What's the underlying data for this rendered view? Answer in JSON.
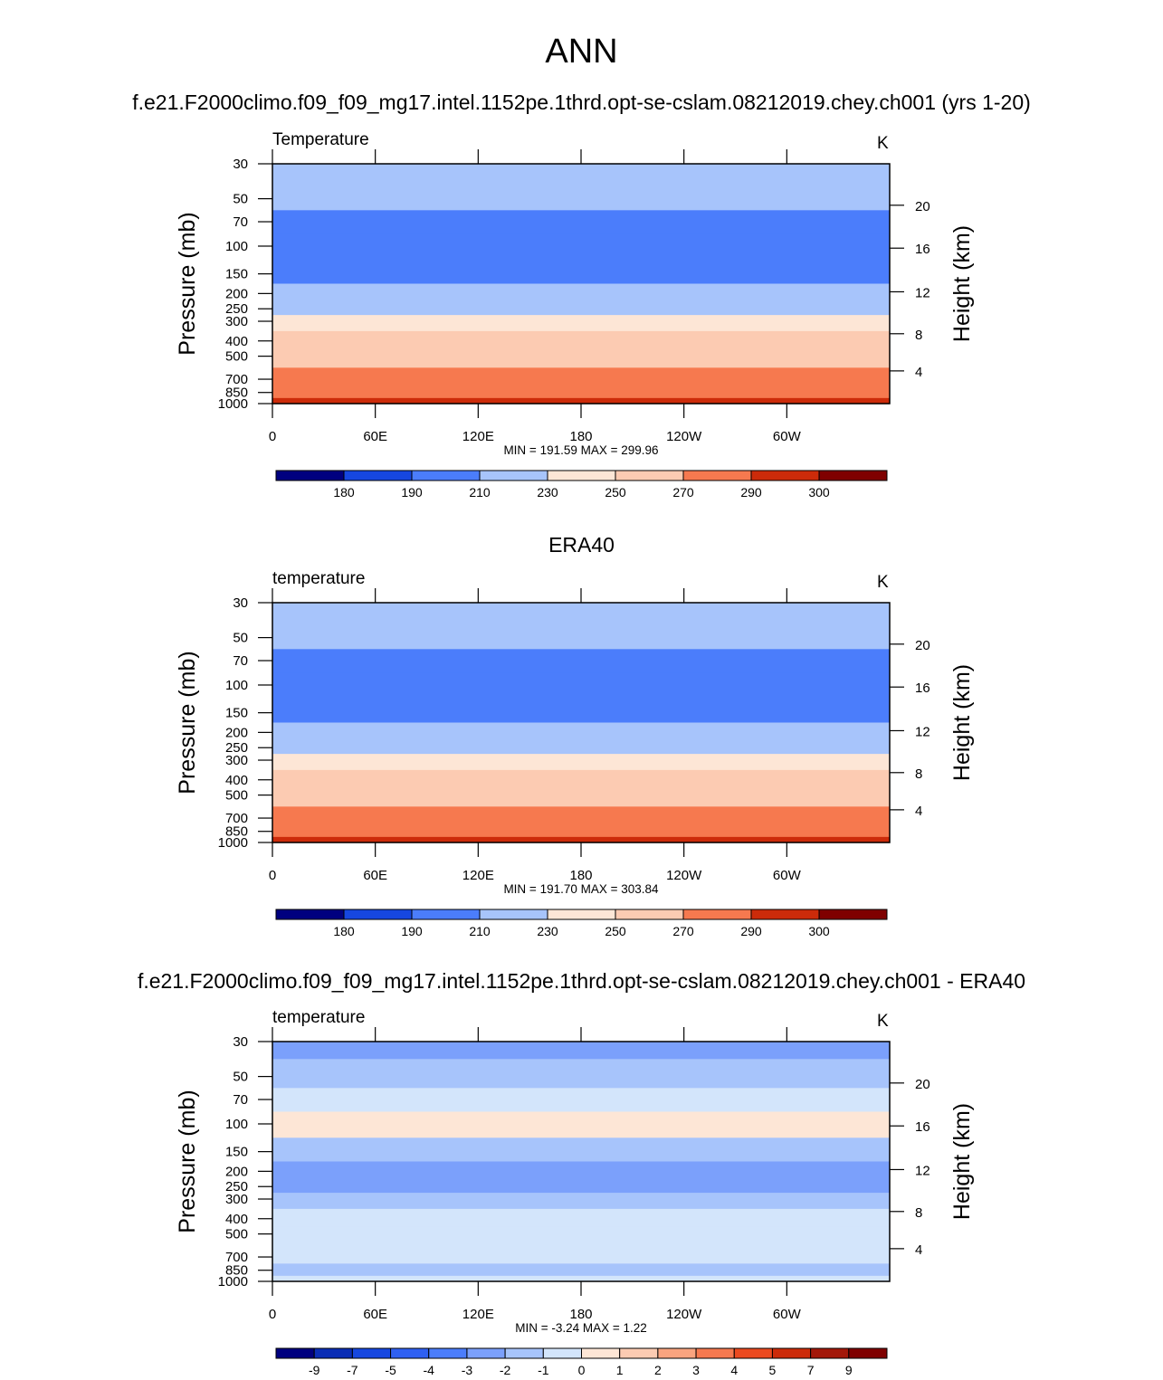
{
  "main_title": "ANN",
  "panels": [
    {
      "title": "f.e21.F2000climo.f09_f09_mg17.intel.1152pe.1thrd.opt-se-cslam.08212019.chey.ch001 (yrs 1-20)",
      "left_label": "Temperature",
      "units": "K",
      "stats": "MIN = 191.59  MAX = 299.96"
    },
    {
      "title": "ERA40",
      "left_label": "temperature",
      "units": "K",
      "stats": "MIN = 191.70  MAX = 303.84"
    },
    {
      "title": "f.e21.F2000climo.f09_f09_mg17.intel.1152pe.1thrd.opt-se-cslam.08212019.chey.ch001 - ERA40",
      "left_label": "temperature",
      "units": "K",
      "stats": "MIN =  -3.24  MAX =   1.22"
    }
  ],
  "chart_data": [
    {
      "type": "heatmap",
      "xlabel": "",
      "ylabel": "Pressure (mb)",
      "ylabel_right": "Height (km)",
      "x_ticks": [
        "0",
        "60E",
        "120E",
        "180",
        "120W",
        "60W"
      ],
      "y_ticks": [
        30,
        50,
        70,
        100,
        150,
        200,
        250,
        300,
        400,
        500,
        700,
        850,
        1000
      ],
      "y_right_ticks": [
        20,
        16,
        12,
        8,
        4
      ],
      "y_scale": "log",
      "levels": [
        {
          "p": 30,
          "value": 218
        },
        {
          "p": 50,
          "value": 212
        },
        {
          "p": 70,
          "value": 205
        },
        {
          "p": 100,
          "value": 202
        },
        {
          "p": 150,
          "value": 208
        },
        {
          "p": 200,
          "value": 216
        },
        {
          "p": 250,
          "value": 226
        },
        {
          "p": 300,
          "value": 238
        },
        {
          "p": 400,
          "value": 252
        },
        {
          "p": 500,
          "value": 262
        },
        {
          "p": 700,
          "value": 276
        },
        {
          "p": 850,
          "value": 285
        },
        {
          "p": 1000,
          "value": 290
        }
      ],
      "colorbar_labels": [
        "180",
        "190",
        "210",
        "230",
        "250",
        "270",
        "290",
        "300"
      ]
    },
    {
      "type": "heatmap",
      "xlabel": "",
      "ylabel": "Pressure (mb)",
      "ylabel_right": "Height (km)",
      "x_ticks": [
        "0",
        "60E",
        "120E",
        "180",
        "120W",
        "60W"
      ],
      "y_ticks": [
        30,
        50,
        70,
        100,
        150,
        200,
        250,
        300,
        400,
        500,
        700,
        850,
        1000
      ],
      "y_right_ticks": [
        20,
        16,
        12,
        8,
        4
      ],
      "y_scale": "log",
      "levels": [
        {
          "p": 30,
          "value": 218
        },
        {
          "p": 50,
          "value": 212
        },
        {
          "p": 70,
          "value": 205
        },
        {
          "p": 100,
          "value": 202
        },
        {
          "p": 150,
          "value": 208
        },
        {
          "p": 200,
          "value": 216
        },
        {
          "p": 250,
          "value": 226
        },
        {
          "p": 300,
          "value": 238
        },
        {
          "p": 400,
          "value": 252
        },
        {
          "p": 500,
          "value": 262
        },
        {
          "p": 700,
          "value": 276
        },
        {
          "p": 850,
          "value": 286
        },
        {
          "p": 1000,
          "value": 292
        }
      ],
      "colorbar_labels": [
        "180",
        "190",
        "210",
        "230",
        "250",
        "270",
        "290",
        "300"
      ]
    },
    {
      "type": "heatmap",
      "xlabel": "",
      "ylabel": "Pressure (mb)",
      "ylabel_right": "Height (km)",
      "x_ticks": [
        "0",
        "60E",
        "120E",
        "180",
        "120W",
        "60W"
      ],
      "y_ticks": [
        30,
        50,
        70,
        100,
        150,
        200,
        250,
        300,
        400,
        500,
        700,
        850,
        1000
      ],
      "y_right_ticks": [
        20,
        16,
        12,
        8,
        4
      ],
      "y_scale": "log",
      "levels": [
        {
          "p": 30,
          "value": -2.5
        },
        {
          "p": 50,
          "value": -1.5
        },
        {
          "p": 70,
          "value": -0.5
        },
        {
          "p": 100,
          "value": 0.3
        },
        {
          "p": 150,
          "value": -1.5
        },
        {
          "p": 200,
          "value": -2.5
        },
        {
          "p": 250,
          "value": -2.5
        },
        {
          "p": 300,
          "value": -1.5
        },
        {
          "p": 400,
          "value": -0.5
        },
        {
          "p": 500,
          "value": -0.5
        },
        {
          "p": 700,
          "value": -0.5
        },
        {
          "p": 850,
          "value": -1.5
        },
        {
          "p": 1000,
          "value": -0.5
        }
      ],
      "colorbar_labels": [
        "-9",
        "-7",
        "-5",
        "-4",
        "-3",
        "-2",
        "-1",
        "0",
        "1",
        "2",
        "3",
        "4",
        "5",
        "7",
        "9"
      ]
    }
  ],
  "colorbar_colors": [
    "#00007f",
    "#0a2db5",
    "#1647e0",
    "#2f60f2",
    "#4b7dfb",
    "#7ba0fb",
    "#a7c4fb",
    "#d3e5fb",
    "#fde6d6",
    "#fccbb2",
    "#f9a47f",
    "#f6794f",
    "#eb4a20",
    "#cc2b0a",
    "#a3180a",
    "#7f0000"
  ]
}
